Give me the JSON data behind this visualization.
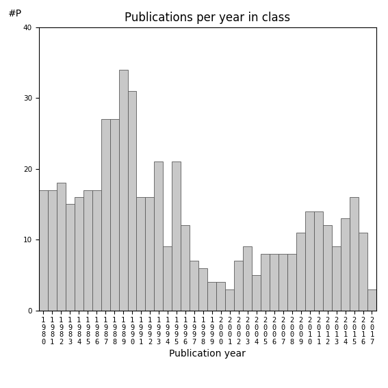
{
  "title": "Publications per year in class",
  "xlabel": "Publication year",
  "ylabel": "#P",
  "years": [
    1980,
    1981,
    1982,
    1983,
    1984,
    1985,
    1986,
    1987,
    1988,
    1989,
    1990,
    1991,
    1992,
    1993,
    1994,
    1995,
    1996,
    1997,
    1998,
    1999,
    2000,
    2001,
    2002,
    2003,
    2004,
    2005,
    2006,
    2007,
    2008,
    2009,
    2010,
    2011,
    2012,
    2013,
    2014,
    2015,
    2016,
    2017
  ],
  "values": [
    17,
    17,
    18,
    15,
    16,
    17,
    17,
    27,
    27,
    34,
    31,
    16,
    16,
    21,
    9,
    21,
    12,
    7,
    6,
    4,
    4,
    3,
    7,
    9,
    5,
    8,
    8,
    8,
    8,
    11,
    14,
    14,
    12,
    9,
    13,
    16,
    11,
    3
  ],
  "bar_color": "#c8c8c8",
  "bar_edgecolor": "#5a5a5a",
  "ylim": [
    0,
    40
  ],
  "yticks": [
    0,
    10,
    20,
    30,
    40
  ],
  "background_color": "#ffffff",
  "title_fontsize": 12,
  "axis_label_fontsize": 10,
  "tick_fontsize": 7.5
}
